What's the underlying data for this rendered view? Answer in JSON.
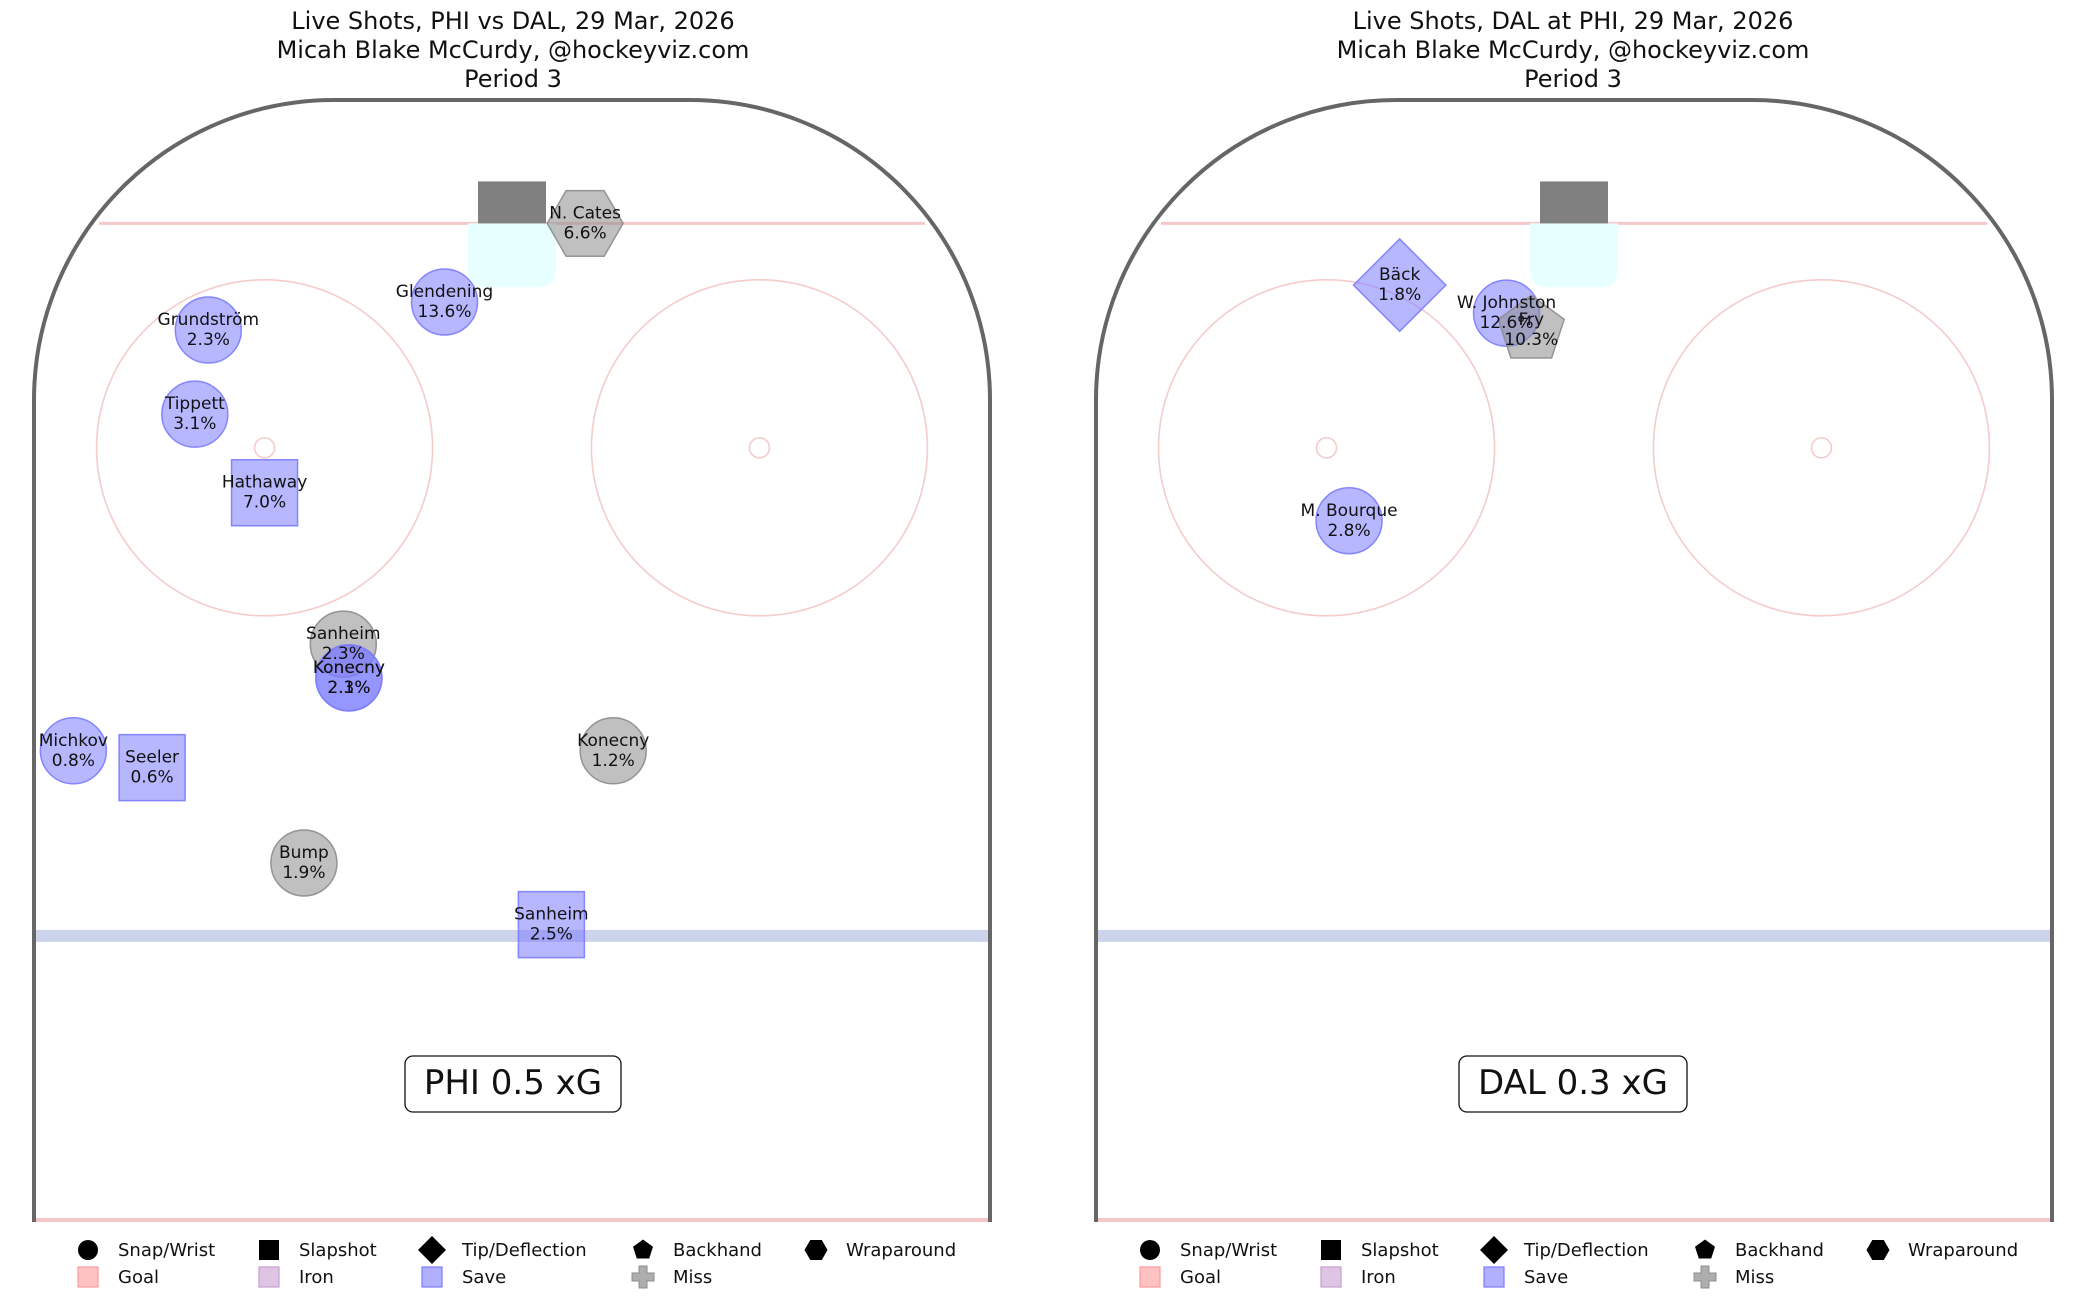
{
  "colors": {
    "board": "#666666",
    "red_line": "#f4c8c8",
    "circle_line": "#f5cccc",
    "blue_line": "#cdd3ea",
    "net": "#808080",
    "crease": "#e8ffff",
    "save": "#7b7bff",
    "miss": "#8c8c8c",
    "goal": "#ff9a9a",
    "iron": "#c89ed0"
  },
  "legend": {
    "shape_items": [
      {
        "shape": "circle",
        "label": "Snap/Wrist"
      },
      {
        "shape": "square",
        "label": "Slapshot"
      },
      {
        "shape": "diamond",
        "label": "Tip/Deflection"
      },
      {
        "shape": "pentagon",
        "label": "Backhand"
      },
      {
        "shape": "hexagon",
        "label": "Wraparound"
      }
    ],
    "result_items": [
      {
        "result": "goal",
        "label": "Goal"
      },
      {
        "result": "iron",
        "label": "Iron"
      },
      {
        "result": "save",
        "label": "Save"
      },
      {
        "result": "miss",
        "label": "Miss"
      }
    ]
  },
  "chart_data": [
    {
      "type": "scatter",
      "title_lines": [
        "Live Shots, PHI vs DAL, 29 Mar, 2026",
        "Micah Blake McCurdy, @hockeyviz.com",
        "Period 3"
      ],
      "summary": "PHI 0.5 xG",
      "xlim": [
        -42.5,
        42.5
      ],
      "ylim": [
        0,
        100
      ],
      "points": [
        {
          "player": "N. Cates",
          "xg": "6.6%",
          "x": 6.5,
          "y": 89,
          "shape": "hexagon",
          "result": "miss"
        },
        {
          "player": "Glendening",
          "xg": "13.6%",
          "x": -6,
          "y": 82,
          "shape": "circle",
          "result": "save"
        },
        {
          "player": "Grundström",
          "xg": "2.3%",
          "x": -27,
          "y": 79.5,
          "shape": "circle",
          "result": "save"
        },
        {
          "player": "Tippett",
          "xg": "3.1%",
          "x": -28.2,
          "y": 72,
          "shape": "circle",
          "result": "save"
        },
        {
          "player": "Hathaway",
          "xg": "7.0%",
          "x": -22,
          "y": 65,
          "shape": "square",
          "result": "save"
        },
        {
          "player": "Sanheim",
          "xg": "2.3%",
          "x": -15,
          "y": 51.5,
          "shape": "circle",
          "result": "miss"
        },
        {
          "player": "Konecny",
          "xg": "2.1%",
          "x": -14.5,
          "y": 48.5,
          "shape": "circle",
          "result": "save"
        },
        {
          "player": "Konecny",
          "xg": "2.3%",
          "x": -14.5,
          "y": 48.5,
          "shape": "circle",
          "result": "save"
        },
        {
          "player": "Michkov",
          "xg": "0.8%",
          "x": -39,
          "y": 42,
          "shape": "circle",
          "result": "save"
        },
        {
          "player": "Seeler",
          "xg": "0.6%",
          "x": -32,
          "y": 40.5,
          "shape": "square",
          "result": "save"
        },
        {
          "player": "Konecny",
          "xg": "1.2%",
          "x": 9,
          "y": 42,
          "shape": "circle",
          "result": "miss"
        },
        {
          "player": "Bump",
          "xg": "1.9%",
          "x": -18.5,
          "y": 32,
          "shape": "circle",
          "result": "miss"
        },
        {
          "player": "Sanheim",
          "xg": "2.5%",
          "x": 3.5,
          "y": 26.5,
          "shape": "square",
          "result": "save"
        }
      ]
    },
    {
      "type": "scatter",
      "title_lines": [
        "Live Shots, DAL at PHI, 29 Mar, 2026",
        "Micah Blake McCurdy, @hockeyviz.com",
        "Period 3"
      ],
      "summary": "DAL 0.3 xG",
      "xlim": [
        -42.5,
        42.5
      ],
      "ylim": [
        0,
        100
      ],
      "points": [
        {
          "player": "Bäck",
          "xg": "1.8%",
          "x": -15.5,
          "y": 83.5,
          "shape": "diamond",
          "result": "save"
        },
        {
          "player": "W. Johnston",
          "xg": "12.6%",
          "x": -6,
          "y": 81,
          "shape": "circle",
          "result": "save"
        },
        {
          "player": "Fry",
          "xg": "10.3%",
          "x": -3.8,
          "y": 79.5,
          "shape": "pentagon",
          "result": "miss"
        },
        {
          "player": "M. Bourque",
          "xg": "2.8%",
          "x": -20,
          "y": 62.5,
          "shape": "circle",
          "result": "save"
        }
      ]
    }
  ]
}
